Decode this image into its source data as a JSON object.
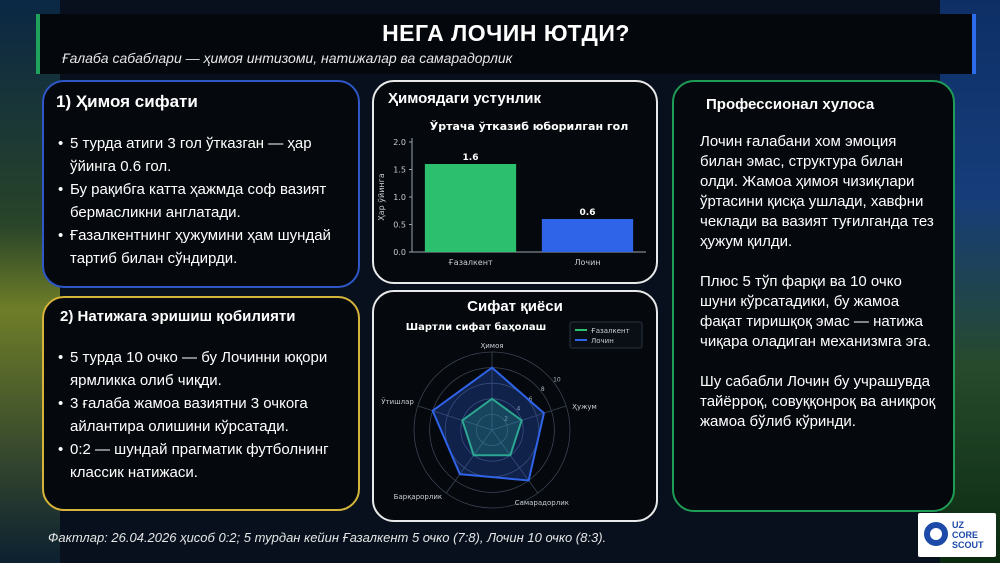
{
  "header": {
    "title": "НЕГА ЛОЧИН ЮТДИ?",
    "subtitle": "Ғалаба сабаблари — ҳимоя интизоми, натижалар ва самарадорлик"
  },
  "card_defense": {
    "title": "1) Ҳимоя сифати",
    "bullets": [
      "5 турда атиги 3 гол ўтказган — ҳар ўйинга 0.6 гол.",
      "Бу рақибга катта ҳажмда соф вазият бермасликни англатади.",
      "Ғазалкентнинг ҳужумини ҳам шундай тартиб билан сўндирди."
    ]
  },
  "card_results": {
    "title": "2) Натижага эришиш қобилияти",
    "bullets": [
      "5 турда 10 очко — бу Лочинни юқори ярмликка олиб чиқди.",
      "3 ғалаба жамоа вазиятни 3 очкога айлантира олишини кўрсатади.",
      "0:2 — шундай прагматик футболнинг классик натижаси."
    ]
  },
  "card_bar": {
    "title": "Ҳимоядаги устунлик"
  },
  "card_radar": {
    "title": "Сифат қиёси"
  },
  "card_conclusion": {
    "title": "Профессионал хулоса",
    "paragraphs": [
      "Лочин ғалабани хом эмоция билан эмас, структура билан олди. Жамоа ҳимоя чизиқлари ўртасини қисқа ушлади, хавфни чеклади ва вазият туғилганда тез ҳужум қилди.",
      "Плюс 5 тўп фарқи ва 10 очко шуни кўрсатадики, бу жамоа фақат тиришқоқ эмас — натижа чиқара оладиган механизмга эга.",
      "Шу сабабли Лочин бу учрашувда тайёрроқ, совуққонроқ ва аниқроқ жамоа бўлиб кўринди."
    ]
  },
  "footer": {
    "facts": "Фактлар: 26.04.2026 ҳисоб 0:2; 5 турдан кейин Ғазалкент 5 очко (7:8), Лочин 10 очко (8:3)."
  },
  "logo": {
    "lines": [
      "UZ",
      "CORE",
      "SCOUT"
    ]
  },
  "colors": {
    "green": "#2bbf6e",
    "blue": "#2f63e8",
    "accent_yellow": "#d6b33a"
  },
  "chart_data": [
    {
      "type": "bar",
      "title": "Ўртача ўтказиб юборилган гол",
      "ylabel": "Ҳар ўйинга",
      "categories": [
        "Ғазалкент",
        "Лочин"
      ],
      "values": [
        1.6,
        0.6
      ],
      "value_labels": [
        "1.6",
        "0.6"
      ],
      "ylim": [
        0,
        2.0
      ],
      "yticks": [
        "0.0",
        "0.5",
        "1.0",
        "1.5",
        "2.0"
      ],
      "colors": [
        "#2bbf6e",
        "#2f63e8"
      ]
    },
    {
      "type": "radar",
      "title": "Шартли сифат баҳолаш",
      "axes": [
        "Ҳимоя",
        "Ҳужум",
        "Самарадорлик",
        "Барқарорлик",
        "Ўтишлар"
      ],
      "rticks": [
        "2",
        "4",
        "6",
        "8",
        "10"
      ],
      "rmax": 10,
      "series": [
        {
          "name": "Ғазалкент",
          "values": [
            4,
            4,
            4,
            4,
            4
          ],
          "color": "#2bbf6e"
        },
        {
          "name": "Лочин",
          "values": [
            8,
            7,
            8,
            7,
            8
          ],
          "color": "#2f63e8"
        }
      ]
    }
  ]
}
